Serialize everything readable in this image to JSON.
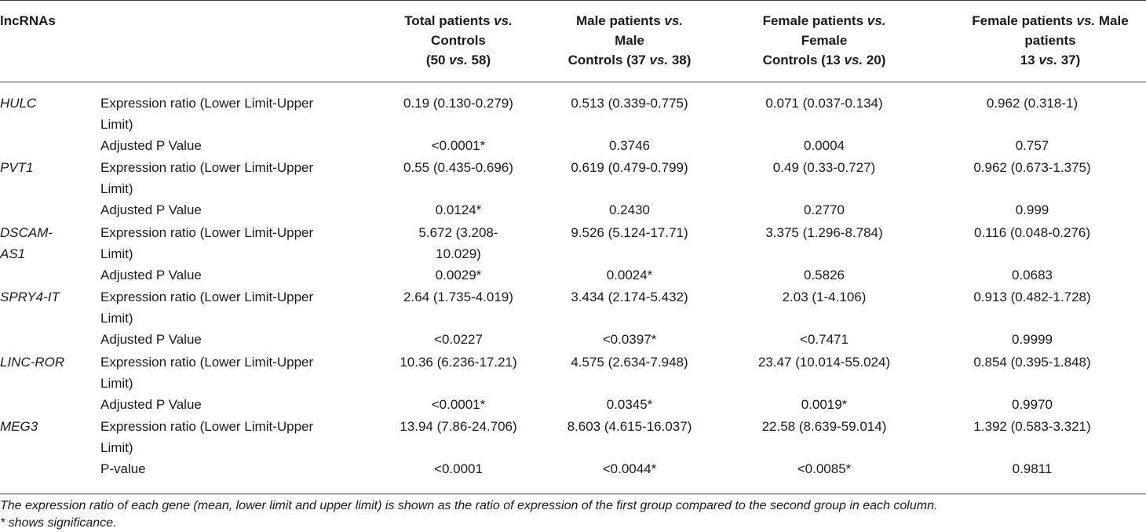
{
  "table": {
    "corner_header": "lncRNAs",
    "columns": [
      {
        "lines": [
          [
            "Total patients ",
            "vs.",
            ""
          ],
          [
            "Controls",
            "",
            ""
          ],
          [
            "(50 ",
            "vs.",
            " 58)"
          ]
        ]
      },
      {
        "lines": [
          [
            "Male patients ",
            "vs.",
            ""
          ],
          [
            "Male",
            "",
            ""
          ],
          [
            "Controls (37 ",
            "vs.",
            " 38)"
          ]
        ]
      },
      {
        "lines": [
          [
            "Female patients ",
            "vs.",
            ""
          ],
          [
            "Female",
            "",
            ""
          ],
          [
            "Controls (13 ",
            "vs.",
            " 20)"
          ]
        ]
      },
      {
        "lines": [
          [
            "Female patients ",
            "vs.",
            " Male"
          ],
          [
            "patients",
            "",
            ""
          ],
          [
            "13 ",
            "vs.",
            " 37)"
          ]
        ]
      }
    ],
    "rows": [
      {
        "gene": "HULC",
        "ratio_label_1": "Expression ratio (Lower Limit-Upper",
        "ratio_label_2": "Limit)",
        "ratio": [
          [
            "0.19 (0.130-0.279)"
          ],
          [
            "0.513 (0.339-0.775)"
          ],
          [
            "0.071 (0.037-0.134)"
          ],
          [
            "0.962 (0.318-1)"
          ]
        ],
        "p_label": "Adjusted P Value",
        "p": [
          "<0.0001*",
          "0.3746",
          "0.0004",
          "0.757"
        ]
      },
      {
        "gene": "PVT1",
        "ratio_label_1": "Expression ratio (Lower Limit-Upper",
        "ratio_label_2": "Limit)",
        "ratio": [
          [
            "0.55 (0.435-0.696)"
          ],
          [
            "0.619 (0.479-0.799)"
          ],
          [
            "0.49 (0.33-0.727)"
          ],
          [
            "0.962 (0.673-1.375)"
          ]
        ],
        "p_label": "Adjusted P Value",
        "p": [
          "0.0124*",
          "0.2430",
          "0.2770",
          "0.999"
        ]
      },
      {
        "gene": "DSCAM-",
        "gene_2": "AS1",
        "ratio_label_1": "Expression ratio (Lower Limit-Upper",
        "ratio_label_2": "Limit)",
        "ratio": [
          [
            "5.672 (3.208-",
            "10.029)"
          ],
          [
            "9.526 (5.124-17.71)"
          ],
          [
            "3.375 (1.296-8.784)"
          ],
          [
            "0.116 (0.048-0.276)"
          ]
        ],
        "p_label": "Adjusted P Value",
        "p": [
          "0.0029*",
          "0.0024*",
          "0.5826",
          "0.0683"
        ]
      },
      {
        "gene": "SPRY4-IT",
        "ratio_label_1": "Expression ratio (Lower Limit-Upper",
        "ratio_label_2": "Limit)",
        "ratio": [
          [
            "2.64 (1.735-4.019)"
          ],
          [
            "3.434 (2.174-5.432)"
          ],
          [
            "2.03 (1-4.106)"
          ],
          [
            "0.913 (0.482-1.728)"
          ]
        ],
        "p_label": "Adjusted P Value",
        "p": [
          "<0.0227",
          "<0.0397*",
          "<0.7471",
          "0.9999"
        ]
      },
      {
        "gene": "LINC-ROR",
        "ratio_label_1": "Expression ratio (Lower Limit-Upper",
        "ratio_label_2": "Limit)",
        "ratio": [
          [
            "10.36 (6.236-17.21)"
          ],
          [
            "4.575 (2.634-7.948)"
          ],
          [
            "23.47 (10.014-55.024)"
          ],
          [
            "0.854 (0.395-1.848)"
          ]
        ],
        "p_label": "Adjusted P Value",
        "p": [
          "<0.0001*",
          "0.0345*",
          "0.0019*",
          "0.9970"
        ]
      },
      {
        "gene": "MEG3",
        "ratio_label_1": "Expression ratio (Lower Limit-Upper",
        "ratio_label_2": "Limit)",
        "ratio": [
          [
            "13.94 (7.86-24.706)"
          ],
          [
            "8.603 (4.615-16.037)"
          ],
          [
            "22.58 (8.639-59.014)"
          ],
          [
            "1.392 (0.583-3.321)"
          ]
        ],
        "p_label": "P-value",
        "p": [
          "<0.0001",
          "<0.0044*",
          "<0.0085*",
          "0.9811"
        ]
      }
    ]
  },
  "footnotes": [
    "The expression ratio of each gene (mean, lower limit and upper limit) is shown as the ratio of expression of the first group compared to the second group in each column.",
    "* shows significance."
  ],
  "colors": {
    "text": "#1a1a1a",
    "rule": "#3a3a3a"
  }
}
